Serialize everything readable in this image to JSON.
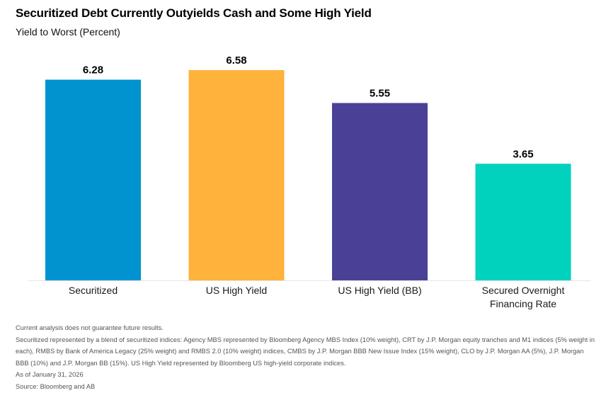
{
  "title": "Securitized Debt Currently Outyields Cash and Some High Yield",
  "subtitle": "Yield to Worst (Percent)",
  "chart_data": {
    "type": "bar",
    "categories": [
      "Securitized",
      "US High Yield",
      "US High Yield (BB)",
      "Secured Overnight Financing Rate"
    ],
    "category_lines": [
      [
        "Securitized"
      ],
      [
        "US High Yield"
      ],
      [
        "US High Yield (BB)"
      ],
      [
        "Secured Overnight",
        "Financing Rate"
      ]
    ],
    "values": [
      6.28,
      6.58,
      5.55,
      3.65
    ],
    "value_labels": [
      "6.28",
      "6.58",
      "5.55",
      "3.65"
    ],
    "colors": [
      "#0093D0",
      "#FFB23C",
      "#4A4196",
      "#00D2BE"
    ],
    "title": "Securitized Debt Currently Outyields Cash and Some High Yield",
    "ylabel": "Yield to Worst (Percent)",
    "xlabel": "",
    "ylim": [
      0,
      6.58
    ],
    "grid": false,
    "legend": "none"
  },
  "notes": {
    "disclaimer": "Current analysis does not guarantee future results.",
    "composition": "Securitized represented by a blend of securitized indices: Agency MBS represented by Bloomberg Agency MBS Index (10% weight), CRT by J.P. Morgan equity tranches and M1 indices (5% weight in each), RMBS by Bank of America Legacy (25% weight) and RMBS 2.0 (10% weight) indices, CMBS by J.P. Morgan BBB New Issue Index (15% weight), CLO by J.P. Morgan AA (5%), J.P. Morgan BBB (10%) and J.P. Morgan BB (15%). US High Yield represented by Bloomberg US high-yield corporate indices.",
    "as_of": "As of January 31, 2026",
    "source": "Source: Bloomberg and AB"
  }
}
